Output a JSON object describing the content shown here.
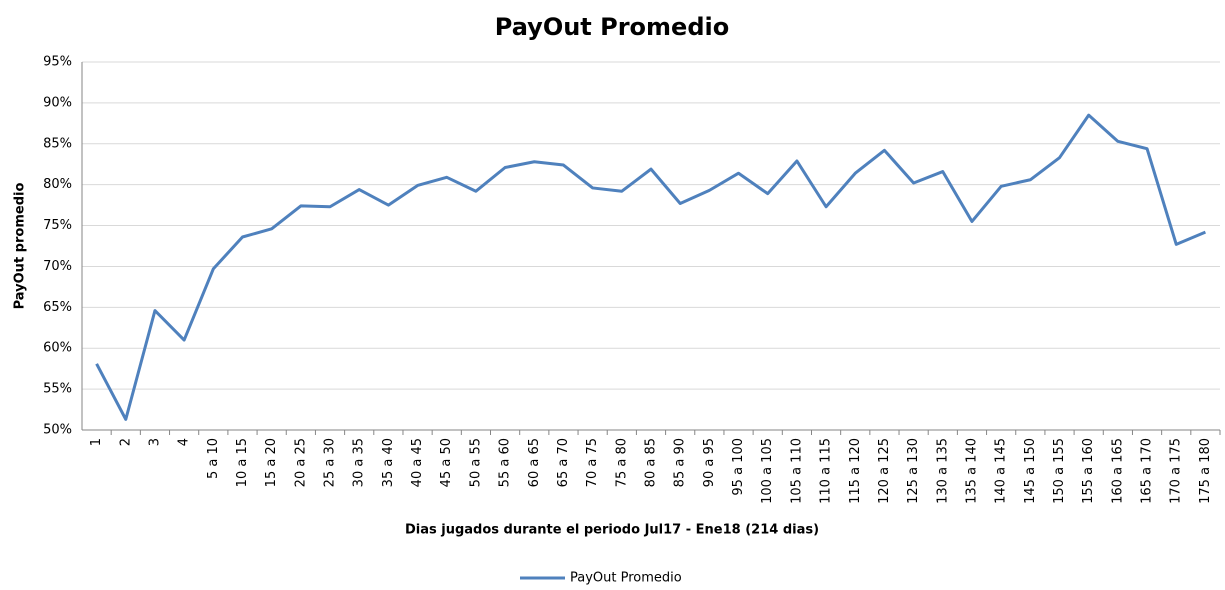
{
  "chart_data": {
    "type": "line",
    "title": "PayOut Promedio",
    "x_label": "Dias jugados durante el periodo Jul17 - Ene18 (214 dias)",
    "y_label": "PayOut promedio",
    "categories": [
      "1",
      "2",
      "3",
      "4",
      "5 a 10",
      "10 a 15",
      "15 a 20",
      "20 a 25",
      "25 a 30",
      "30 a 35",
      "35 a 40",
      "40 a 45",
      "45 a 50",
      "50 a 55",
      "55 a 60",
      "60 a 65",
      "65 a 70",
      "70 a 75",
      "75 a 80",
      "80 a 85",
      "85 a 90",
      "90 a 95",
      "95 a 100",
      "100 a 105",
      "105 a 110",
      "110 a 115",
      "115 a 120",
      "120 a 125",
      "125 a 130",
      "130 a 135",
      "135 a 140",
      "140 a 145",
      "145 a 150",
      "150 a 155",
      "155 a 160",
      "160 a 165",
      "165 a 170",
      "170 a 175",
      "175 a 180"
    ],
    "series": [
      {
        "name": "PayOut Promedio",
        "color": "#4f81bd",
        "values": [
          58.1,
          51.3,
          64.6,
          61.0,
          69.7,
          73.6,
          74.6,
          77.4,
          77.3,
          79.4,
          77.5,
          79.9,
          80.9,
          79.2,
          82.1,
          82.8,
          82.4,
          79.6,
          79.2,
          81.9,
          77.7,
          79.3,
          81.4,
          78.9,
          82.9,
          77.3,
          81.4,
          84.2,
          80.2,
          81.6,
          75.5,
          79.8,
          80.6,
          83.3,
          88.5,
          85.3,
          84.4,
          72.7,
          74.2
        ]
      }
    ],
    "ylim": [
      50,
      95
    ],
    "yticks": [
      {
        "value": 50,
        "label": "50%"
      },
      {
        "value": 55,
        "label": "55%"
      },
      {
        "value": 60,
        "label": "60%"
      },
      {
        "value": 65,
        "label": "65%"
      },
      {
        "value": 70,
        "label": "70%"
      },
      {
        "value": 75,
        "label": "75%"
      },
      {
        "value": 80,
        "label": "80%"
      },
      {
        "value": 85,
        "label": "85%"
      },
      {
        "value": 90,
        "label": "90%"
      },
      {
        "value": 95,
        "label": "95%"
      }
    ],
    "grid": true,
    "legend": "bottom"
  }
}
